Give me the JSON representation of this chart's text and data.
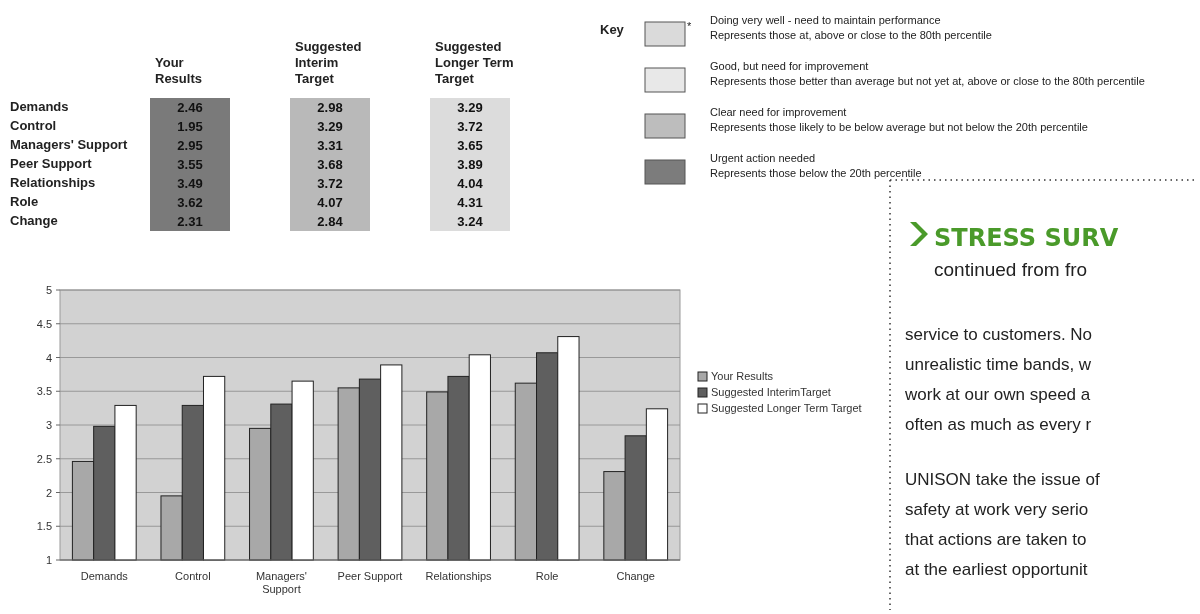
{
  "chart_data": [
    {
      "type": "heatmap",
      "categories": [
        "Your Results",
        "Suggested Interim Target",
        "Suggested Longer Term Target"
      ],
      "y_categories": [
        "Demands",
        "Control",
        "Managers' Support",
        "Peer Support",
        "Relationships",
        "Role",
        "Change"
      ],
      "data_labels": true,
      "cells": [
        [
          2.46,
          2.98,
          3.29
        ],
        [
          1.95,
          3.29,
          3.72
        ],
        [
          2.95,
          3.31,
          3.65
        ],
        [
          3.55,
          3.68,
          3.89
        ],
        [
          3.49,
          3.72,
          4.04
        ],
        [
          3.62,
          4.07,
          4.31
        ],
        [
          2.31,
          2.84,
          3.24
        ]
      ],
      "annotations": [
        "Key",
        "Doing very well - need to maintain performance",
        "Represents those at, above or close to the 80th percentile",
        "Good, but need for improvement",
        "Represents those better than average but not yet at, above or close to the 80th percentile",
        "Clear need for improvement",
        "Represents those likely to be below average but not below the 20th percentile",
        "Urgent action needed",
        "Represents those below the 20th percentile",
        "*"
      ]
    },
    {
      "type": "bar",
      "categories": [
        "Demands",
        "Control",
        "Managers' Support",
        "Peer Support",
        "Relationships",
        "Role",
        "Change"
      ],
      "series": [
        {
          "name": "Your Results",
          "color": "#a8a8a8",
          "values": [
            2.46,
            1.95,
            2.95,
            3.55,
            3.49,
            3.62,
            2.31
          ]
        },
        {
          "name": "Suggested InterimTarget",
          "color": "#5f5f5f",
          "values": [
            2.98,
            3.29,
            3.31,
            3.68,
            3.72,
            4.07,
            2.84
          ]
        },
        {
          "name": "Suggested Longer Term Target",
          "color": "#ffffff",
          "values": [
            3.29,
            3.72,
            3.65,
            3.89,
            4.04,
            4.31,
            3.24
          ]
        }
      ],
      "ylim": [
        1,
        5
      ],
      "yticks": [
        1,
        1.5,
        2,
        2.5,
        3,
        3.5,
        4,
        4.5,
        5
      ],
      "grid": "y",
      "legend": "right"
    },
    {
      "type": "other",
      "title": "STRESS SURV",
      "subtitle": "continued from fro",
      "annotations": [
        "service to customers. No",
        "unrealistic time bands, w",
        "work at our own speed a",
        "often as much as every r",
        "UNISON take the issue of",
        "safety at work very serio",
        "that actions are taken to",
        "at the earliest opportunit"
      ]
    }
  ]
}
